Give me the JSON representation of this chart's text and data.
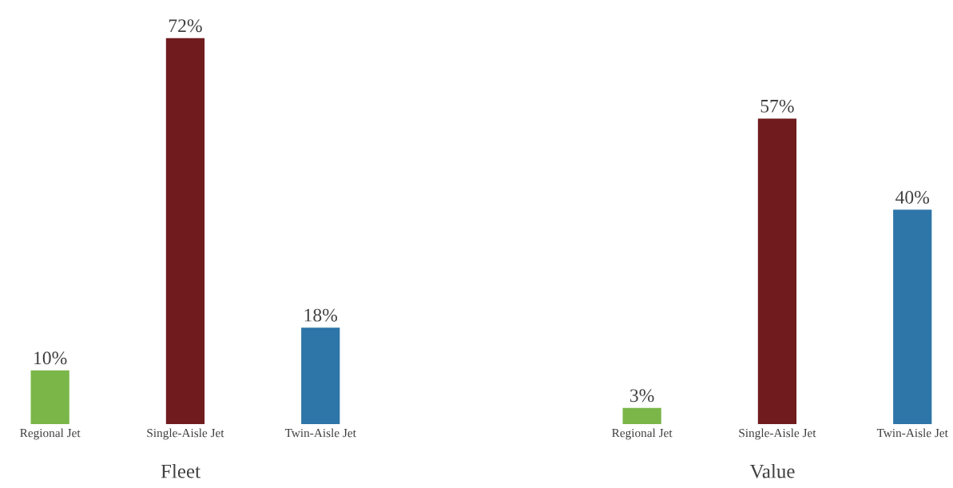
{
  "chart_data": [
    {
      "type": "bar",
      "xlabel": "Fleet",
      "categories": [
        "Regional Jet",
        "Single-Aisle Jet",
        "Twin-Aisle Jet"
      ],
      "values": [
        10,
        72,
        18
      ],
      "colors": [
        "#7ab648",
        "#701c1f",
        "#2e75a8"
      ],
      "value_labels": [
        "10%",
        "72%",
        "18%"
      ],
      "grid": false,
      "legend": false
    },
    {
      "type": "bar",
      "xlabel": "Value",
      "categories": [
        "Regional Jet",
        "Single-Aisle Jet",
        "Twin-Aisle Jet"
      ],
      "values": [
        3,
        57,
        40
      ],
      "colors": [
        "#7ab648",
        "#701c1f",
        "#2e75a8"
      ],
      "value_labels": [
        "3%",
        "57%",
        "40%"
      ],
      "grid": false,
      "legend": false
    }
  ]
}
